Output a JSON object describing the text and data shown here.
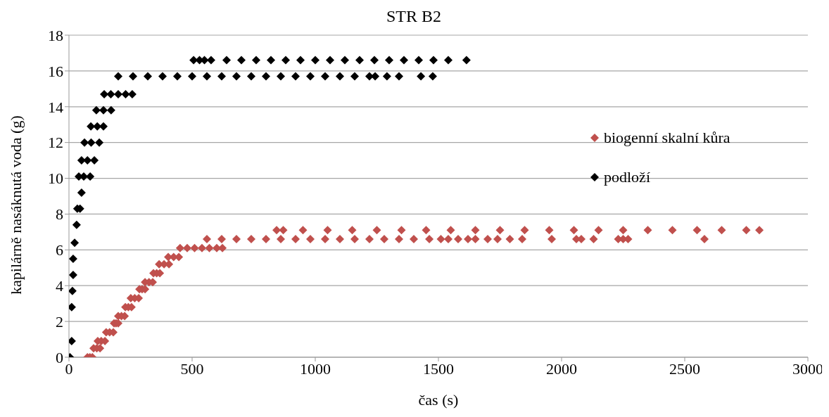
{
  "chart_data": {
    "type": "scatter",
    "title": "STR B2",
    "xlabel": "čas (s)",
    "ylabel": "kapilárně nasáknutá voda (g)",
    "xlim": [
      0,
      3000
    ],
    "xticks": [
      0,
      500,
      1000,
      1500,
      2000,
      2500,
      3000
    ],
    "ylim": [
      0,
      18
    ],
    "yticks": [
      0,
      2,
      4,
      6,
      8,
      10,
      12,
      14,
      16,
      18
    ],
    "grid": "y",
    "legend": "right",
    "marker": "diamond",
    "series": [
      {
        "name": "biogenní skalní kůra",
        "color": "#c0504d",
        "x": [
          75,
          85,
          95,
          100,
          113,
          126,
          117,
          131,
          146,
          151,
          165,
          180,
          183,
          191,
          200,
          200,
          213,
          226,
          229,
          241,
          254,
          251,
          267,
          283,
          286,
          297,
          309,
          309,
          325,
          340,
          343,
          356,
          369,
          366,
          386,
          406,
          403,
          425,
          446,
          451,
          480,
          510,
          540,
          570,
          600,
          623,
          560,
          620,
          680,
          740,
          800,
          860,
          920,
          980,
          1040,
          1100,
          1160,
          1220,
          1280,
          1340,
          1400,
          1463,
          1510,
          1540,
          1580,
          1620,
          1650,
          1700,
          1740,
          1790,
          1840,
          1960,
          2060,
          2080,
          2130,
          2230,
          2250,
          2270,
          2580,
          843,
          870,
          950,
          1050,
          1150,
          1250,
          1350,
          1450,
          1550,
          1650,
          1750,
          1850,
          1950,
          2050,
          2150,
          2250,
          2350,
          2450,
          2550,
          2650,
          2750,
          2803
        ],
        "values": [
          0,
          0,
          0,
          0.5,
          0.5,
          0.5,
          0.9,
          0.9,
          0.9,
          1.4,
          1.4,
          1.4,
          1.9,
          1.9,
          1.9,
          2.3,
          2.3,
          2.3,
          2.8,
          2.8,
          2.8,
          3.3,
          3.3,
          3.3,
          3.8,
          3.8,
          3.8,
          4.2,
          4.2,
          4.2,
          4.7,
          4.7,
          4.7,
          5.2,
          5.2,
          5.2,
          5.6,
          5.6,
          5.6,
          6.1,
          6.1,
          6.1,
          6.1,
          6.1,
          6.1,
          6.1,
          6.6,
          6.6,
          6.6,
          6.6,
          6.6,
          6.6,
          6.6,
          6.6,
          6.6,
          6.6,
          6.6,
          6.6,
          6.6,
          6.6,
          6.6,
          6.6,
          6.6,
          6.6,
          6.6,
          6.6,
          6.6,
          6.6,
          6.6,
          6.6,
          6.6,
          6.6,
          6.6,
          6.6,
          6.6,
          6.6,
          6.6,
          6.6,
          6.6,
          7.1,
          7.1,
          7.1,
          7.1,
          7.1,
          7.1,
          7.1,
          7.1,
          7.1,
          7.1,
          7.1,
          7.1,
          7.1,
          7.1,
          7.1,
          7.1,
          7.1,
          7.1,
          7.1,
          7.1,
          7.1,
          7.1
        ]
      },
      {
        "name": "podloží",
        "color": "#000000",
        "x": [
          4,
          11,
          11,
          14,
          17,
          17,
          23,
          31,
          34,
          45,
          51,
          40,
          60,
          86,
          51,
          75,
          103,
          63,
          90,
          123,
          89,
          115,
          140,
          111,
          140,
          171,
          143,
          170,
          200,
          230,
          257,
          200,
          260,
          320,
          380,
          440,
          500,
          560,
          620,
          680,
          740,
          800,
          860,
          920,
          980,
          1040,
          1100,
          1160,
          1220,
          1243,
          1291,
          1340,
          1429,
          1477,
          506,
          530,
          550,
          577,
          640,
          700,
          760,
          820,
          880,
          940,
          1000,
          1060,
          1120,
          1180,
          1240,
          1300,
          1360,
          1420,
          1480,
          1540,
          1614
        ],
        "values": [
          0,
          0.9,
          2.8,
          3.7,
          4.6,
          5.5,
          6.4,
          7.4,
          8.3,
          8.3,
          9.2,
          10.1,
          10.1,
          10.1,
          11.0,
          11.0,
          11.0,
          12.0,
          12.0,
          12.0,
          12.9,
          12.9,
          12.9,
          13.8,
          13.8,
          13.8,
          14.7,
          14.7,
          14.7,
          14.7,
          14.7,
          15.7,
          15.7,
          15.7,
          15.7,
          15.7,
          15.7,
          15.7,
          15.7,
          15.7,
          15.7,
          15.7,
          15.7,
          15.7,
          15.7,
          15.7,
          15.7,
          15.7,
          15.7,
          15.7,
          15.7,
          15.7,
          15.7,
          15.7,
          16.6,
          16.6,
          16.6,
          16.6,
          16.6,
          16.6,
          16.6,
          16.6,
          16.6,
          16.6,
          16.6,
          16.6,
          16.6,
          16.6,
          16.6,
          16.6,
          16.6,
          16.6,
          16.6,
          16.6,
          16.6
        ]
      }
    ]
  }
}
